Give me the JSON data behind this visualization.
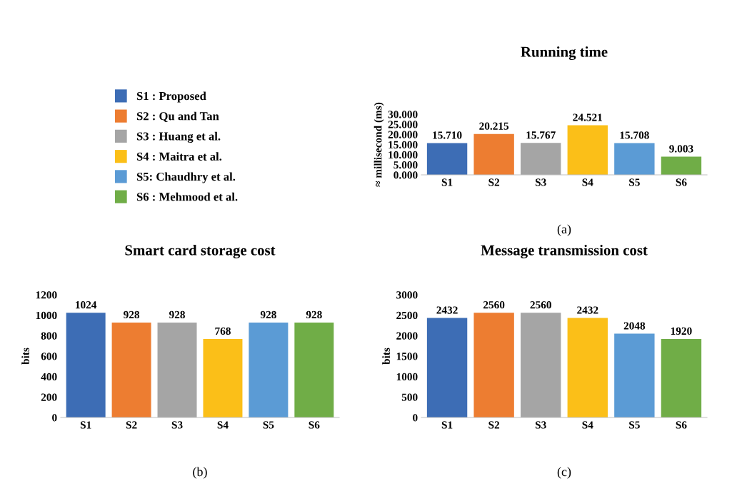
{
  "chart_data": [
    {
      "type": "bar",
      "title": "Running time",
      "ylabel": "≈ millisecond (ms)",
      "categories": [
        "S1",
        "S2",
        "S3",
        "S4",
        "S5",
        "S6"
      ],
      "series": [
        {
          "name": "S1 : Proposed",
          "color": "#3d6db5",
          "values": [
            15.71,
            null,
            null,
            null,
            null,
            null
          ],
          "value_labels": [
            "15.710",
            null,
            null,
            null,
            null,
            null
          ]
        },
        {
          "name": "S2 : Qu and Tan",
          "color": "#ed7d31",
          "values": [
            null,
            20.215,
            null,
            null,
            null,
            null
          ],
          "value_labels": [
            null,
            "20.215",
            null,
            null,
            null,
            null
          ]
        },
        {
          "name": "S3 : Huang et al.",
          "color": "#a5a5a5",
          "values": [
            null,
            null,
            15.767,
            null,
            null,
            null
          ],
          "value_labels": [
            null,
            null,
            "15.767",
            null,
            null,
            null
          ]
        },
        {
          "name": "S4 : Maitra et al.",
          "color": "#fbbf18",
          "values": [
            null,
            null,
            null,
            24.521,
            null,
            null
          ],
          "value_labels": [
            null,
            null,
            null,
            "24.521",
            null,
            null
          ]
        },
        {
          "name": "S5: Chaudhry et al.",
          "color": "#5b9bd5",
          "values": [
            null,
            null,
            null,
            null,
            15.708,
            null
          ],
          "value_labels": [
            null,
            null,
            null,
            null,
            "15.708",
            null
          ]
        },
        {
          "name": "S6 : Mehmood et al.",
          "color": "#70ad47",
          "values": [
            null,
            null,
            null,
            null,
            null,
            9.003
          ],
          "value_labels": [
            null,
            null,
            null,
            null,
            null,
            "9.003"
          ]
        }
      ],
      "ylim": [
        0,
        30
      ],
      "yticks": [
        {
          "value": 0,
          "label": "0.000"
        },
        {
          "value": 5,
          "label": "5.000"
        },
        {
          "value": 10,
          "label": "10.000"
        },
        {
          "value": 15,
          "label": "15.000"
        },
        {
          "value": 20,
          "label": "20.000"
        },
        {
          "value": 25,
          "label": "25.000"
        },
        {
          "value": 30,
          "label": "30.000"
        }
      ],
      "legend": "left",
      "annotations": [
        "(a)"
      ]
    },
    {
      "type": "bar",
      "title": "Smart card storage cost",
      "ylabel": "bits",
      "categories": [
        "S1",
        "S2",
        "S3",
        "S4",
        "S5",
        "S6"
      ],
      "series": [
        {
          "color": "#3d6db5",
          "values": [
            1024,
            null,
            null,
            null,
            null,
            null
          ]
        },
        {
          "color": "#ed7d31",
          "values": [
            null,
            928,
            null,
            null,
            null,
            null
          ]
        },
        {
          "color": "#a5a5a5",
          "values": [
            null,
            null,
            928,
            null,
            null,
            null
          ]
        },
        {
          "color": "#fbbf18",
          "values": [
            null,
            null,
            null,
            768,
            null,
            null
          ]
        },
        {
          "color": "#5b9bd5",
          "values": [
            null,
            null,
            null,
            null,
            928,
            null
          ]
        },
        {
          "color": "#70ad47",
          "values": [
            null,
            null,
            null,
            null,
            null,
            928
          ]
        }
      ],
      "ylim": [
        0,
        1200
      ],
      "yticks": [
        0,
        200,
        400,
        600,
        800,
        1000,
        1200
      ],
      "data_labels": true,
      "annotations": [
        "(b)"
      ]
    },
    {
      "type": "bar",
      "title": "Message transmission cost",
      "ylabel": "bits",
      "categories": [
        "S1",
        "S2",
        "S3",
        "S4",
        "S5",
        "S6"
      ],
      "series": [
        {
          "color": "#3d6db5",
          "values": [
            2432,
            null,
            null,
            null,
            null,
            null
          ]
        },
        {
          "color": "#ed7d31",
          "values": [
            null,
            2560,
            null,
            null,
            null,
            null
          ]
        },
        {
          "color": "#a5a5a5",
          "values": [
            null,
            null,
            2560,
            null,
            null,
            null
          ]
        },
        {
          "color": "#fbbf18",
          "values": [
            null,
            null,
            null,
            2432,
            null,
            null
          ]
        },
        {
          "color": "#5b9bd5",
          "values": [
            null,
            null,
            null,
            null,
            2048,
            null
          ]
        },
        {
          "color": "#70ad47",
          "values": [
            null,
            null,
            null,
            null,
            null,
            1920
          ]
        }
      ],
      "ylim": [
        0,
        3000
      ],
      "yticks": [
        0,
        500,
        1000,
        1500,
        2000,
        2500,
        3000
      ],
      "data_labels": true,
      "annotations": [
        "(c)"
      ]
    }
  ]
}
